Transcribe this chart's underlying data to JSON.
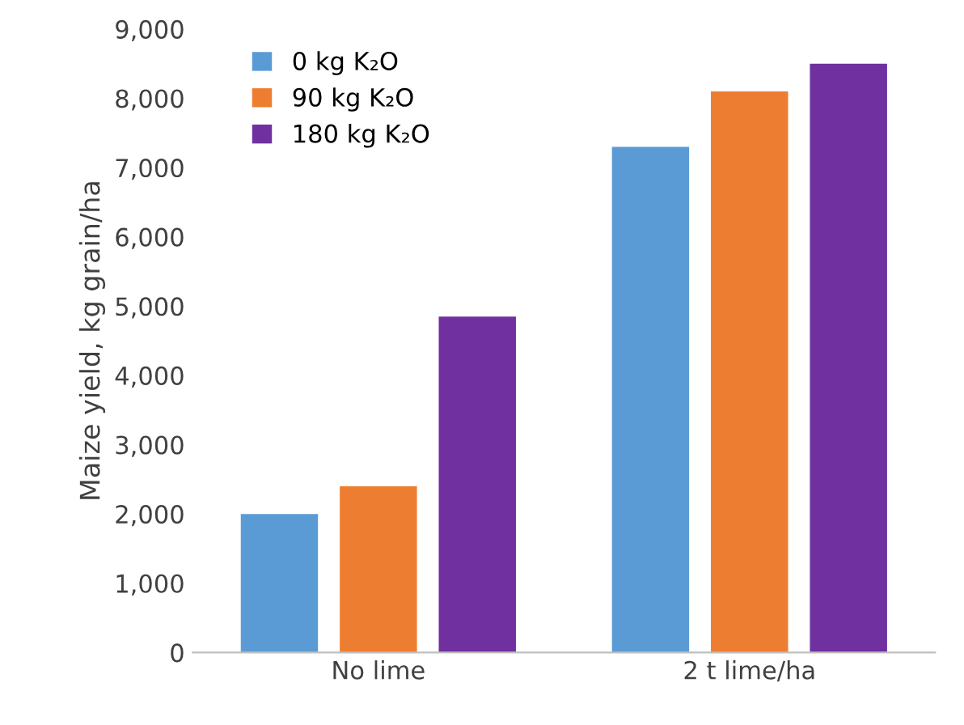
{
  "chart_data": {
    "type": "bar",
    "ylabel": "Maize yield, kg grain/ha",
    "categories": [
      "No lime",
      "2 t lime/ha"
    ],
    "series": [
      {
        "name": "0 kg K₂O",
        "color": "#5b9bd5",
        "values": [
          2000,
          7300
        ]
      },
      {
        "name": "90 kg K₂O",
        "color": "#ed7d31",
        "values": [
          2400,
          8100
        ]
      },
      {
        "name": "180 kg K₂O",
        "color": "#7030a0",
        "values": [
          4850,
          8500
        ]
      }
    ],
    "ylim": [
      0,
      9000
    ],
    "yticks": [
      0,
      {
        "value": 1000,
        "label": "1,000"
      },
      {
        "value": 2000,
        "label": "2,000"
      },
      {
        "value": 3000,
        "label": "3,000"
      },
      {
        "value": 4000,
        "label": "4,000"
      },
      {
        "value": 5000,
        "label": "5,000"
      },
      {
        "value": 6000,
        "label": "6,000"
      },
      {
        "value": 7000,
        "label": "7,000"
      },
      {
        "value": 8000,
        "label": "8,000"
      },
      {
        "value": 9000,
        "label": "9,000"
      }
    ],
    "grid": false,
    "legend": "top left"
  }
}
